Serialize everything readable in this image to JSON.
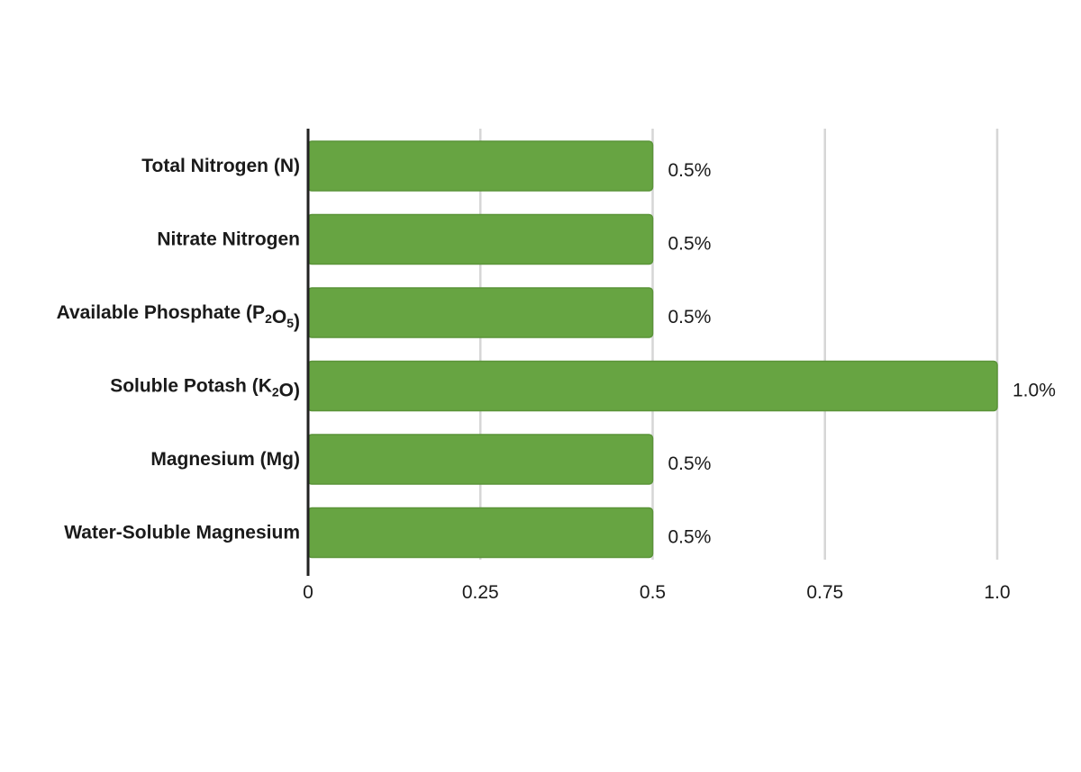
{
  "chart_data": {
    "type": "bar",
    "orientation": "horizontal",
    "categories": [
      {
        "label": [
          {
            "t": "Total Nitrogen (N)"
          }
        ]
      },
      {
        "label": [
          {
            "t": "Nitrate Nitrogen"
          }
        ]
      },
      {
        "label": [
          {
            "t": "Available Phosphate (P"
          },
          {
            "t": "2",
            "sub": true
          },
          {
            "t": "O"
          },
          {
            "t": "5",
            "sub": true
          },
          {
            "t": ")"
          }
        ]
      },
      {
        "label": [
          {
            "t": "Soluble Potash (K"
          },
          {
            "t": "2",
            "sub": true
          },
          {
            "t": "O)"
          }
        ]
      },
      {
        "label": [
          {
            "t": "Magnesium (Mg)"
          }
        ]
      },
      {
        "label": [
          {
            "t": "Water-Soluble Magnesium"
          }
        ]
      }
    ],
    "category_names": [
      "Total Nitrogen (N)",
      "Nitrate Nitrogen",
      "Available Phosphate (P2O5)",
      "Soluble Potash (K2O)",
      "Magnesium (Mg)",
      "Water-Soluble Magnesium"
    ],
    "values": [
      0.5,
      0.5,
      0.5,
      1.0,
      0.5,
      0.5
    ],
    "data_labels": [
      "0.5%",
      "0.5%",
      "0.5%",
      "1.0%",
      "0.5%",
      "0.5%"
    ],
    "xlim": [
      0,
      1.0
    ],
    "x_ticks": [
      0,
      0.25,
      0.5,
      0.75,
      1.0
    ],
    "x_tick_labels": [
      "0",
      "0.25",
      "0.5",
      "0.75",
      "1.0"
    ],
    "title": "",
    "xlabel": "",
    "ylabel": "",
    "grid": "vertical",
    "colors": {
      "bar": "#67a442",
      "bar_edge": "#5a9438",
      "grid": "#d6d6d6",
      "axis": "#222222"
    }
  }
}
